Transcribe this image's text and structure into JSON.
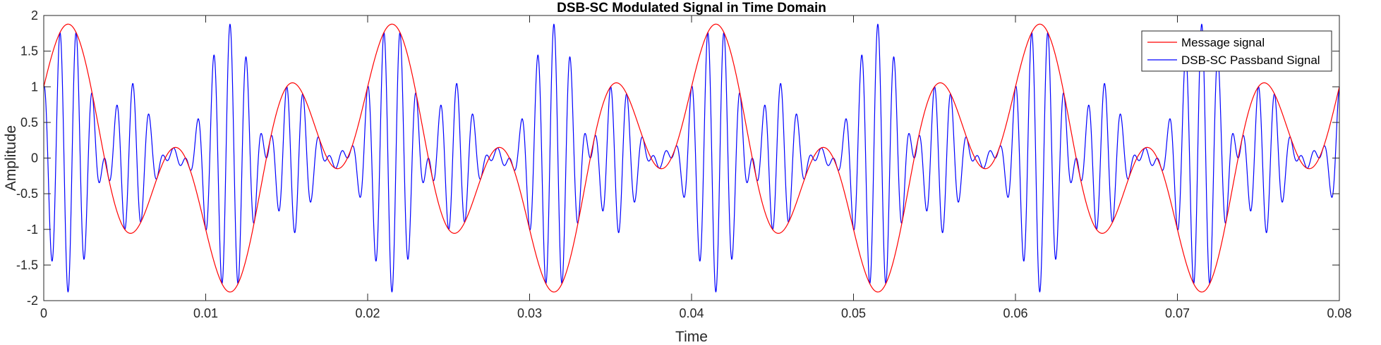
{
  "chart_data": {
    "type": "line",
    "title": "DSB-SC Modulated Signal in Time Domain",
    "xlabel": "Time",
    "ylabel": "Amplitude",
    "xlim": [
      0,
      0.08
    ],
    "ylim": [
      -2,
      2
    ],
    "xticks": [
      0,
      0.01,
      0.02,
      0.03,
      0.04,
      0.05,
      0.06,
      0.07,
      0.08
    ],
    "yticks": [
      -2,
      -1.5,
      -1,
      -0.5,
      0,
      0.5,
      1,
      1.5,
      2
    ],
    "xtick_labels": [
      "0",
      "0.01",
      "0.02",
      "0.03",
      "0.04",
      "0.05",
      "0.06",
      "0.07",
      "0.08"
    ],
    "ytick_labels": [
      "-2",
      "-1.5",
      "-1",
      "-0.5",
      "0",
      "0.5",
      "1",
      "1.5",
      "2"
    ],
    "grid": false,
    "legend_position": "top-right",
    "sample_interval": 2e-05,
    "series": [
      {
        "name": "Message signal",
        "color": "#ff0000",
        "expression": "sin(2*pi*150*t) + cos(2*pi*50*t)",
        "components": [
          {
            "type": "sin",
            "amplitude": 1,
            "frequency_hz": 150
          },
          {
            "type": "cos",
            "amplitude": 1,
            "frequency_hz": 50
          }
        ]
      },
      {
        "name": "DSB-SC Passband Signal",
        "color": "#0000ff",
        "expression": "(sin(2*pi*150*t) + cos(2*pi*50*t)) * cos(2*pi*1000*t)",
        "carrier_frequency_hz": 1000
      }
    ]
  }
}
